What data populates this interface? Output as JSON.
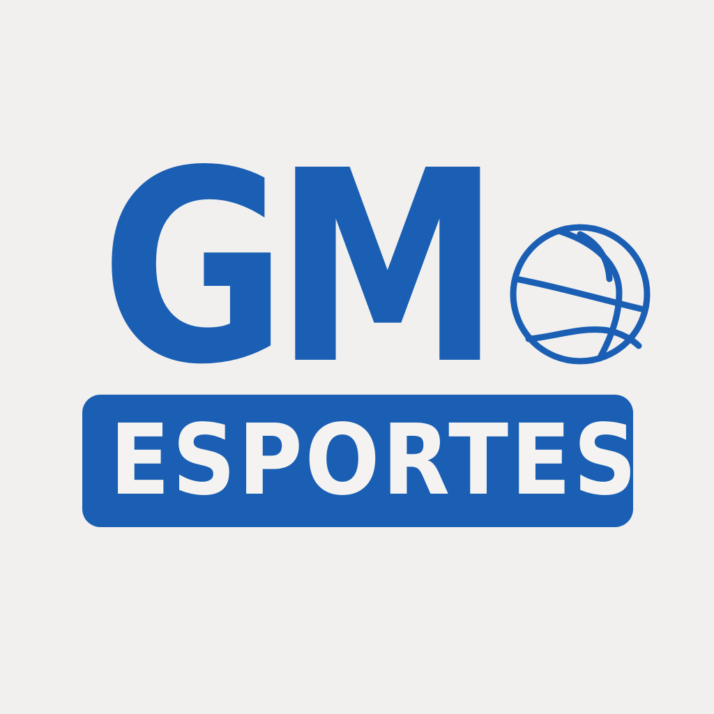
{
  "brand": {
    "monogram": "GM",
    "tagline": "ESPORTES"
  },
  "icon": "basketball-icon",
  "colors": {
    "primary": "#1a5fb4",
    "background": "#f1f0ee",
    "banner_text": "#f4f3f1"
  }
}
